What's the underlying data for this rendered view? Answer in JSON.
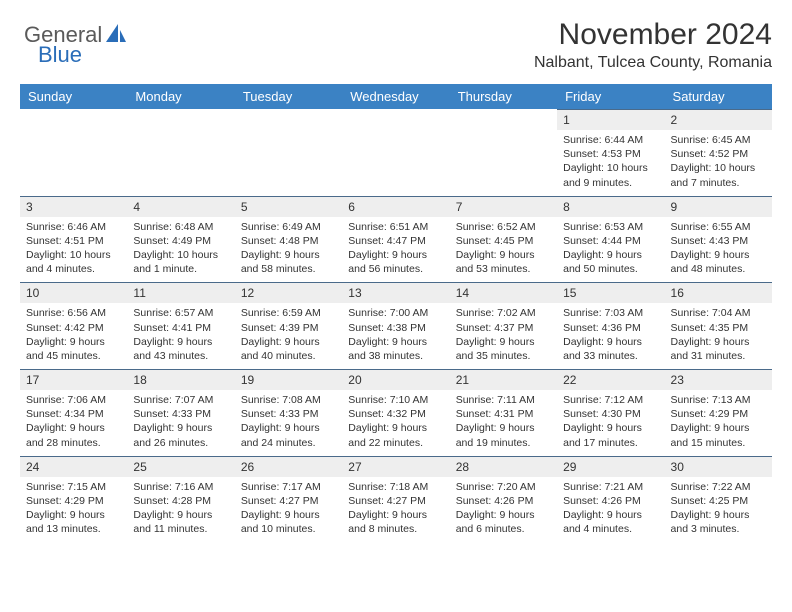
{
  "logo": {
    "general": "General",
    "blue": "Blue",
    "icon_color": "#2a6db8"
  },
  "header": {
    "month_title": "November 2024",
    "location": "Nalbant, Tulcea County, Romania"
  },
  "theme": {
    "header_bg": "#3b82c4",
    "header_fg": "#ffffff",
    "daynum_bg": "#eeeeee",
    "daynum_border": "#4a6a8a",
    "text_color": "#333333"
  },
  "daynames": [
    "Sunday",
    "Monday",
    "Tuesday",
    "Wednesday",
    "Thursday",
    "Friday",
    "Saturday"
  ],
  "weeks": [
    [
      null,
      null,
      null,
      null,
      null,
      {
        "num": "1",
        "sunrise": "Sunrise: 6:44 AM",
        "sunset": "Sunset: 4:53 PM",
        "daylight": "Daylight: 10 hours and 9 minutes."
      },
      {
        "num": "2",
        "sunrise": "Sunrise: 6:45 AM",
        "sunset": "Sunset: 4:52 PM",
        "daylight": "Daylight: 10 hours and 7 minutes."
      }
    ],
    [
      {
        "num": "3",
        "sunrise": "Sunrise: 6:46 AM",
        "sunset": "Sunset: 4:51 PM",
        "daylight": "Daylight: 10 hours and 4 minutes."
      },
      {
        "num": "4",
        "sunrise": "Sunrise: 6:48 AM",
        "sunset": "Sunset: 4:49 PM",
        "daylight": "Daylight: 10 hours and 1 minute."
      },
      {
        "num": "5",
        "sunrise": "Sunrise: 6:49 AM",
        "sunset": "Sunset: 4:48 PM",
        "daylight": "Daylight: 9 hours and 58 minutes."
      },
      {
        "num": "6",
        "sunrise": "Sunrise: 6:51 AM",
        "sunset": "Sunset: 4:47 PM",
        "daylight": "Daylight: 9 hours and 56 minutes."
      },
      {
        "num": "7",
        "sunrise": "Sunrise: 6:52 AM",
        "sunset": "Sunset: 4:45 PM",
        "daylight": "Daylight: 9 hours and 53 minutes."
      },
      {
        "num": "8",
        "sunrise": "Sunrise: 6:53 AM",
        "sunset": "Sunset: 4:44 PM",
        "daylight": "Daylight: 9 hours and 50 minutes."
      },
      {
        "num": "9",
        "sunrise": "Sunrise: 6:55 AM",
        "sunset": "Sunset: 4:43 PM",
        "daylight": "Daylight: 9 hours and 48 minutes."
      }
    ],
    [
      {
        "num": "10",
        "sunrise": "Sunrise: 6:56 AM",
        "sunset": "Sunset: 4:42 PM",
        "daylight": "Daylight: 9 hours and 45 minutes."
      },
      {
        "num": "11",
        "sunrise": "Sunrise: 6:57 AM",
        "sunset": "Sunset: 4:41 PM",
        "daylight": "Daylight: 9 hours and 43 minutes."
      },
      {
        "num": "12",
        "sunrise": "Sunrise: 6:59 AM",
        "sunset": "Sunset: 4:39 PM",
        "daylight": "Daylight: 9 hours and 40 minutes."
      },
      {
        "num": "13",
        "sunrise": "Sunrise: 7:00 AM",
        "sunset": "Sunset: 4:38 PM",
        "daylight": "Daylight: 9 hours and 38 minutes."
      },
      {
        "num": "14",
        "sunrise": "Sunrise: 7:02 AM",
        "sunset": "Sunset: 4:37 PM",
        "daylight": "Daylight: 9 hours and 35 minutes."
      },
      {
        "num": "15",
        "sunrise": "Sunrise: 7:03 AM",
        "sunset": "Sunset: 4:36 PM",
        "daylight": "Daylight: 9 hours and 33 minutes."
      },
      {
        "num": "16",
        "sunrise": "Sunrise: 7:04 AM",
        "sunset": "Sunset: 4:35 PM",
        "daylight": "Daylight: 9 hours and 31 minutes."
      }
    ],
    [
      {
        "num": "17",
        "sunrise": "Sunrise: 7:06 AM",
        "sunset": "Sunset: 4:34 PM",
        "daylight": "Daylight: 9 hours and 28 minutes."
      },
      {
        "num": "18",
        "sunrise": "Sunrise: 7:07 AM",
        "sunset": "Sunset: 4:33 PM",
        "daylight": "Daylight: 9 hours and 26 minutes."
      },
      {
        "num": "19",
        "sunrise": "Sunrise: 7:08 AM",
        "sunset": "Sunset: 4:33 PM",
        "daylight": "Daylight: 9 hours and 24 minutes."
      },
      {
        "num": "20",
        "sunrise": "Sunrise: 7:10 AM",
        "sunset": "Sunset: 4:32 PM",
        "daylight": "Daylight: 9 hours and 22 minutes."
      },
      {
        "num": "21",
        "sunrise": "Sunrise: 7:11 AM",
        "sunset": "Sunset: 4:31 PM",
        "daylight": "Daylight: 9 hours and 19 minutes."
      },
      {
        "num": "22",
        "sunrise": "Sunrise: 7:12 AM",
        "sunset": "Sunset: 4:30 PM",
        "daylight": "Daylight: 9 hours and 17 minutes."
      },
      {
        "num": "23",
        "sunrise": "Sunrise: 7:13 AM",
        "sunset": "Sunset: 4:29 PM",
        "daylight": "Daylight: 9 hours and 15 minutes."
      }
    ],
    [
      {
        "num": "24",
        "sunrise": "Sunrise: 7:15 AM",
        "sunset": "Sunset: 4:29 PM",
        "daylight": "Daylight: 9 hours and 13 minutes."
      },
      {
        "num": "25",
        "sunrise": "Sunrise: 7:16 AM",
        "sunset": "Sunset: 4:28 PM",
        "daylight": "Daylight: 9 hours and 11 minutes."
      },
      {
        "num": "26",
        "sunrise": "Sunrise: 7:17 AM",
        "sunset": "Sunset: 4:27 PM",
        "daylight": "Daylight: 9 hours and 10 minutes."
      },
      {
        "num": "27",
        "sunrise": "Sunrise: 7:18 AM",
        "sunset": "Sunset: 4:27 PM",
        "daylight": "Daylight: 9 hours and 8 minutes."
      },
      {
        "num": "28",
        "sunrise": "Sunrise: 7:20 AM",
        "sunset": "Sunset: 4:26 PM",
        "daylight": "Daylight: 9 hours and 6 minutes."
      },
      {
        "num": "29",
        "sunrise": "Sunrise: 7:21 AM",
        "sunset": "Sunset: 4:26 PM",
        "daylight": "Daylight: 9 hours and 4 minutes."
      },
      {
        "num": "30",
        "sunrise": "Sunrise: 7:22 AM",
        "sunset": "Sunset: 4:25 PM",
        "daylight": "Daylight: 9 hours and 3 minutes."
      }
    ]
  ]
}
